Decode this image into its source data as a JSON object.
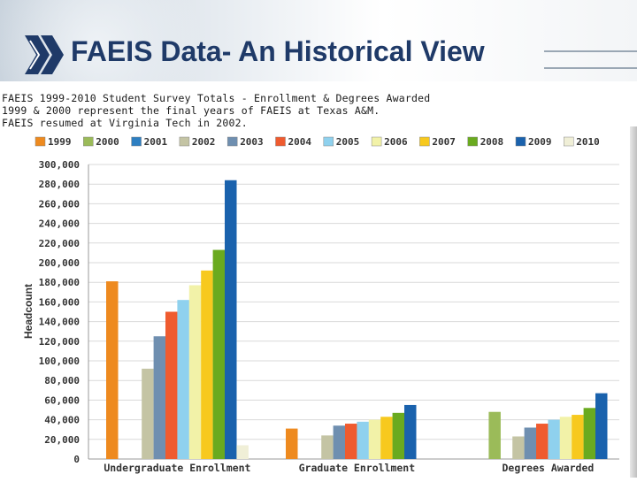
{
  "slide": {
    "title": "FAEIS Data- An Historical View",
    "notes": [
      "FAEIS 1999-2010 Student Survey Totals - Enrollment & Degrees Awarded",
      "1999 & 2000 represent the final years of FAEIS at Texas A&M.",
      "FAEIS resumed at Virginia Tech in 2002."
    ]
  },
  "chart_data": {
    "type": "bar",
    "categories": [
      "Undergraduate Enrollment",
      "Graduate Enrollment",
      "Degrees Awarded"
    ],
    "series": [
      {
        "name": "1999",
        "color": "#ee8a1f",
        "values": [
          181000,
          31000,
          null
        ]
      },
      {
        "name": "2000",
        "color": "#9bbb59",
        "values": [
          null,
          null,
          48000
        ]
      },
      {
        "name": "2001",
        "color": "#2e7fc1",
        "values": [
          null,
          null,
          null
        ]
      },
      {
        "name": "2002",
        "color": "#c4c4a4",
        "values": [
          92000,
          24000,
          23000
        ]
      },
      {
        "name": "2003",
        "color": "#6f8fb0",
        "values": [
          125000,
          34000,
          32000
        ]
      },
      {
        "name": "2004",
        "color": "#ef5b2f",
        "values": [
          150000,
          36000,
          36000
        ]
      },
      {
        "name": "2005",
        "color": "#8fd1ee",
        "values": [
          162000,
          38000,
          40000
        ]
      },
      {
        "name": "2006",
        "color": "#f2f2a8",
        "values": [
          177000,
          40000,
          43000
        ]
      },
      {
        "name": "2007",
        "color": "#f7c91e",
        "values": [
          192000,
          43000,
          45000
        ]
      },
      {
        "name": "2008",
        "color": "#6aaa1f",
        "values": [
          213000,
          47000,
          52000
        ]
      },
      {
        "name": "2009",
        "color": "#1a62ad",
        "values": [
          284000,
          55000,
          67000
        ]
      },
      {
        "name": "2010",
        "color": "#f0efd7",
        "values": [
          14000,
          null,
          null
        ]
      }
    ],
    "y_ticks": [
      "0",
      "20,000",
      "40,000",
      "60,000",
      "80,000",
      "100,000",
      "120,000",
      "140,000",
      "160,000",
      "180,000",
      "200,000",
      "220,000",
      "240,000",
      "260,000",
      "280,000",
      "300,000"
    ],
    "ylim": [
      0,
      300000
    ],
    "ylabel": "Headcount",
    "xlabel": "",
    "legend_position": "top",
    "grid": "horizontal"
  }
}
